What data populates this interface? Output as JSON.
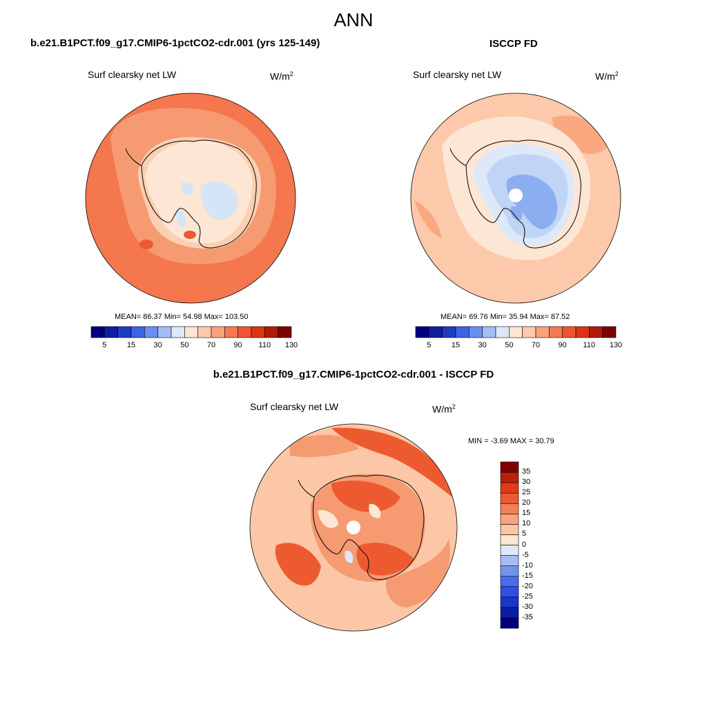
{
  "main_title": "ANN",
  "panels": {
    "model": {
      "title": "b.e21.B1PCT.f09_g17.CMIP6-1pctCO2-cdr.001 (yrs 125-149)",
      "field": "Surf clearsky net LW",
      "units_base": "W/m",
      "units_exp": "2",
      "stats": "MEAN=  86.37  Min=  54.98  Max= 103.50"
    },
    "obs": {
      "title": "ISCCP FD",
      "field": "Surf clearsky net LW",
      "units_base": "W/m",
      "units_exp": "2",
      "stats": "MEAN=  69.76  Min=  35.94  Max=  87.52"
    },
    "diff": {
      "title": "b.e21.B1PCT.f09_g17.CMIP6-1pctCO2-cdr.001 - ISCCP FD",
      "field": "Surf clearsky net LW",
      "units_base": "W/m",
      "units_exp": "2",
      "stats": "MIN =  -3.69 MAX =  30.79"
    }
  },
  "colorbar_abs": {
    "colors": [
      "#00007f",
      "#0d1fa0",
      "#1d3cc4",
      "#3b64e8",
      "#6a8ff2",
      "#a3bdf5",
      "#dce8f8",
      "#fde6d2",
      "#fcc9aa",
      "#f9a27c",
      "#f57a52",
      "#ee5530",
      "#dd3512",
      "#b21a06",
      "#7f0000"
    ],
    "labels": [
      "5",
      "15",
      "30",
      "50",
      "70",
      "90",
      "110",
      "130"
    ]
  },
  "colorbar_diff": {
    "colors": [
      "#00007f",
      "#0a1ea5",
      "#1d35c9",
      "#2f4fe4",
      "#4a6bec",
      "#7393f0",
      "#a6bcf3",
      "#dde8f8",
      "#fde6d2",
      "#fcc5a4",
      "#f9a27c",
      "#f47e55",
      "#ee5a30",
      "#e03b14",
      "#b8200a",
      "#800000"
    ],
    "labels": [
      "35",
      "30",
      "25",
      "20",
      "15",
      "10",
      "5",
      "0",
      "-5",
      "-10",
      "-15",
      "-20",
      "-25",
      "-30",
      "-35"
    ]
  },
  "maps": {
    "model_colors": {
      "ocean": "#f4774e",
      "ring": "#f69a72",
      "inner": "#fbcfb2",
      "land": "#fde6d4",
      "low": "#d6e4f7",
      "hot": "#ec5a30"
    },
    "obs_colors": {
      "ocean": "#fcc9aa",
      "ring": "#fde6d4",
      "land": "#dde8f8",
      "mid": "#c0d4f6",
      "low": "#8aaef0",
      "hot": "#f9a880"
    },
    "diff_colors": {
      "base": "#fbc7a6",
      "mid": "#f69a72",
      "hot": "#ee5a30",
      "land": "#f7a07a",
      "light": "#fde6d4"
    }
  }
}
